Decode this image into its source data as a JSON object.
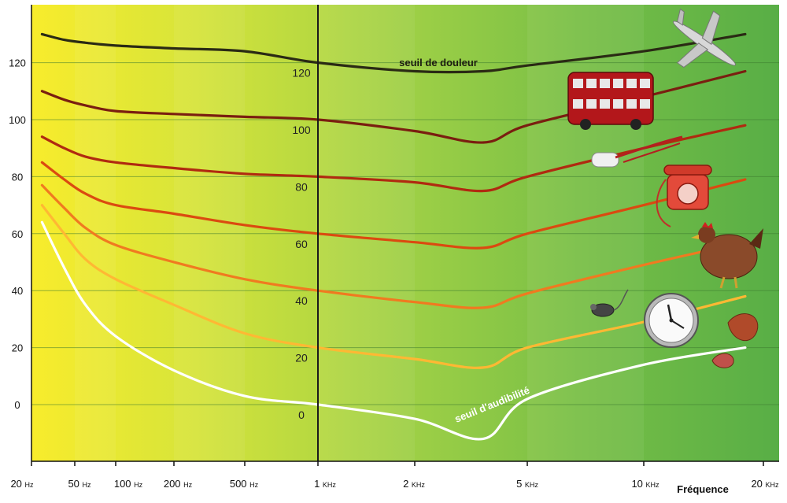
{
  "chart_data": {
    "type": "line",
    "title": "",
    "xlabel": "Fréquence",
    "ylabel": "",
    "x_scale": "log",
    "x_ticks": [
      {
        "hz": 20,
        "num": "20",
        "unit": "Hz"
      },
      {
        "hz": 50,
        "num": "50",
        "unit": "Hz"
      },
      {
        "hz": 100,
        "num": "100",
        "unit": "Hz"
      },
      {
        "hz": 200,
        "num": "200",
        "unit": "Hz"
      },
      {
        "hz": 500,
        "num": "500",
        "unit": "Hz"
      },
      {
        "hz": 1000,
        "num": "1",
        "unit": "KHz"
      },
      {
        "hz": 2000,
        "num": "2",
        "unit": "KHz"
      },
      {
        "hz": 5000,
        "num": "5",
        "unit": "KHz"
      },
      {
        "hz": 10000,
        "num": "10",
        "unit": "KHz"
      },
      {
        "hz": 20000,
        "num": "20",
        "unit": "KHz"
      }
    ],
    "y_ticks": [
      "0",
      "20",
      "40",
      "60",
      "80",
      "100",
      "120"
    ],
    "y_tick_values": [
      0,
      20,
      40,
      60,
      80,
      100,
      120
    ],
    "inner_ticks": [
      "0",
      "20",
      "40",
      "60",
      "80",
      "100",
      "120"
    ],
    "xlim": [
      20,
      20000
    ],
    "ylim": [
      -20,
      135
    ],
    "grid": true,
    "series": [
      {
        "color": "#ffffff",
        "label": "seuil d'audibilité",
        "x": [
          25,
          40,
          60,
          100,
          200,
          500,
          1000,
          2000,
          3500,
          5000,
          10000,
          18000
        ],
        "y": [
          64,
          48,
          35,
          24,
          12,
          3,
          0,
          -5,
          -12,
          2,
          14,
          20
        ]
      },
      {
        "color": "#ffb833",
        "label": "",
        "x": [
          25,
          40,
          60,
          100,
          200,
          500,
          1000,
          2000,
          3500,
          5000,
          10000,
          18000
        ],
        "y": [
          70,
          60,
          51,
          44,
          35,
          25,
          20,
          16,
          13,
          20,
          29,
          38
        ]
      },
      {
        "color": "#f07a20",
        "label": "",
        "x": [
          25,
          40,
          60,
          100,
          200,
          500,
          1000,
          2000,
          3500,
          5000,
          10000,
          18000
        ],
        "y": [
          77,
          69,
          62,
          56,
          50,
          44,
          40,
          36,
          34,
          39,
          49,
          57
        ]
      },
      {
        "color": "#db4a10",
        "label": "",
        "x": [
          25,
          40,
          60,
          100,
          200,
          500,
          1000,
          2000,
          3500,
          5000,
          10000,
          18000
        ],
        "y": [
          85,
          79,
          74,
          70,
          67,
          63,
          60,
          57,
          55,
          60,
          70,
          79
        ]
      },
      {
        "color": "#b02a10",
        "label": "",
        "x": [
          25,
          40,
          60,
          100,
          200,
          500,
          1000,
          2000,
          3500,
          5000,
          10000,
          18000
        ],
        "y": [
          94,
          90,
          87,
          85,
          83,
          81,
          80,
          78,
          75,
          80,
          90,
          98
        ]
      },
      {
        "color": "#7a1e10",
        "label": "",
        "x": [
          25,
          40,
          60,
          100,
          200,
          500,
          1000,
          2000,
          3500,
          5000,
          10000,
          18000
        ],
        "y": [
          110,
          107,
          105,
          103,
          102,
          101,
          100,
          96,
          92,
          98,
          108,
          117
        ]
      },
      {
        "color": "#2a2a14",
        "label": "seuil de douleur",
        "x": [
          25,
          40,
          60,
          100,
          200,
          500,
          1000,
          2000,
          3500,
          5000,
          10000,
          18000
        ],
        "y": [
          130,
          128,
          127,
          126,
          125,
          124,
          120,
          117,
          117,
          119,
          124,
          130
        ]
      }
    ]
  },
  "colors": {
    "gradient": [
      "#f8ec2c",
      "#d6e43a",
      "#9fd046",
      "#76be46",
      "#58ae46"
    ],
    "axis": "#111111",
    "grid": "#3d7a30",
    "center_line": "#1a1a1a"
  },
  "icons": [
    "airplane-icon",
    "bus-icon",
    "whistle-icon",
    "telephone-icon",
    "hen-icon",
    "mouse-icon",
    "clock-icon",
    "leaf-icon"
  ]
}
